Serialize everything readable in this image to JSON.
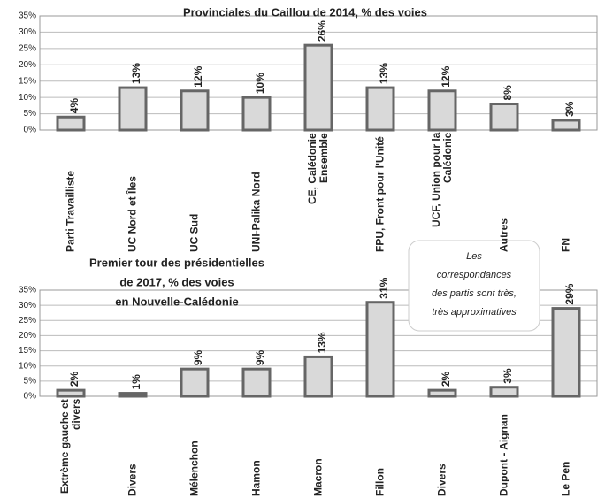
{
  "chart_data": [
    {
      "type": "bar",
      "title": "Provinciales du Caillou de 2014, % des voies",
      "categories": [
        "Parti Travailliste",
        "UC Nord et Îles",
        "UC Sud",
        "UNI-Palika Nord",
        "CE, Calédonie Ensemble",
        "FPU, Front pour l'Unité",
        "UCF, Union pour la Calédonie",
        "Autres",
        "FN"
      ],
      "values": [
        4,
        13,
        12,
        10,
        26,
        13,
        12,
        8,
        3
      ],
      "value_labels": [
        "4%",
        "13%",
        "12%",
        "10%",
        "26%",
        "13%",
        "12%",
        "8%",
        "3%"
      ],
      "color": "#d9d9d9",
      "ylim": [
        0,
        35
      ],
      "yticks": [
        {
          "value": 0,
          "label": "0%"
        },
        {
          "value": 5,
          "label": "5%"
        },
        {
          "value": 10,
          "label": "10%"
        },
        {
          "value": 15,
          "label": "15%"
        },
        {
          "value": 20,
          "label": "20%"
        },
        {
          "value": 25,
          "label": "25%"
        },
        {
          "value": 30,
          "label": "30%"
        },
        {
          "value": 35,
          "label": "35%"
        }
      ],
      "grid": true
    },
    {
      "type": "bar",
      "title": [
        "Premier tour des présidentielles",
        "de 2017, % des voies",
        "en Nouvelle-Calédonie"
      ],
      "annotation": [
        "Les",
        "correspondances",
        "des partis sont très,",
        "très approximatives"
      ],
      "categories": [
        "Extrème gauche et divers",
        "Divers",
        "Mélenchon",
        "Hamon",
        "Macron",
        "Fillon",
        "Divers",
        "Dupont - Aignan",
        "Le Pen"
      ],
      "values": [
        2,
        1,
        9,
        9,
        13,
        31,
        2,
        3,
        29
      ],
      "value_labels": [
        "2%",
        "1%",
        "9%",
        "9%",
        "13%",
        "31%",
        "2%",
        "3%",
        "29%"
      ],
      "color": "#d9d9d9",
      "ylim": [
        0,
        35
      ],
      "yticks": [
        {
          "value": 0,
          "label": "0%"
        },
        {
          "value": 5,
          "label": "5%"
        },
        {
          "value": 10,
          "label": "10%"
        },
        {
          "value": 15,
          "label": "15%"
        },
        {
          "value": 20,
          "label": "20%"
        },
        {
          "value": 25,
          "label": "25%"
        },
        {
          "value": 30,
          "label": "30%"
        },
        {
          "value": 35,
          "label": "35%"
        }
      ],
      "grid": true
    }
  ]
}
